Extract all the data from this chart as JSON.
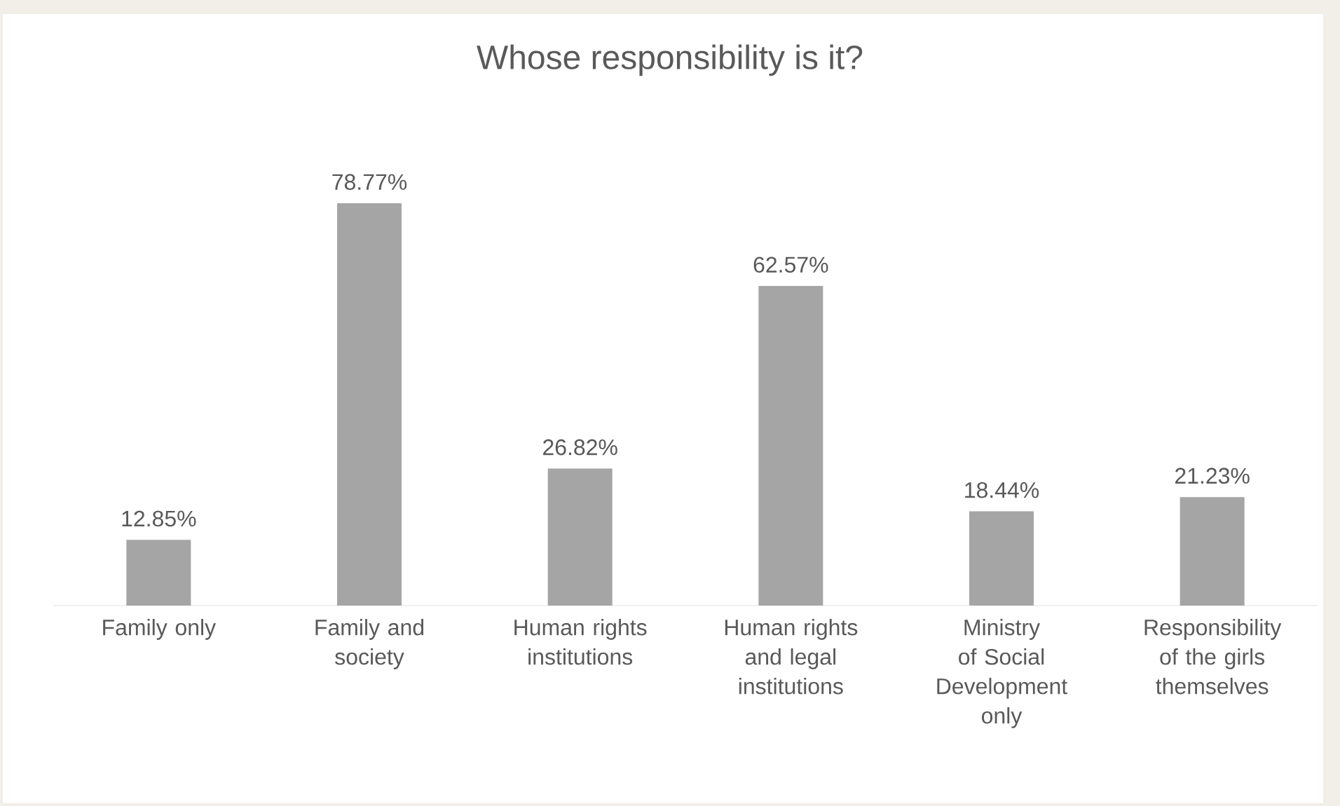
{
  "chart_data": {
    "type": "bar",
    "title": "Whose responsibility is it?",
    "categories": [
      "Family only",
      "Family and society",
      "Human rights institutions",
      "Human rights and legal institutions",
      "Ministry of Social Development only",
      "Responsibility of the girls themselves"
    ],
    "values": [
      12.85,
      78.77,
      26.82,
      62.57,
      18.44,
      21.23
    ],
    "value_labels": [
      "12.85%",
      "78.77%",
      "26.82%",
      "62.57%",
      "18.44%",
      "21.23%"
    ],
    "color": "#a5a5a5"
  }
}
